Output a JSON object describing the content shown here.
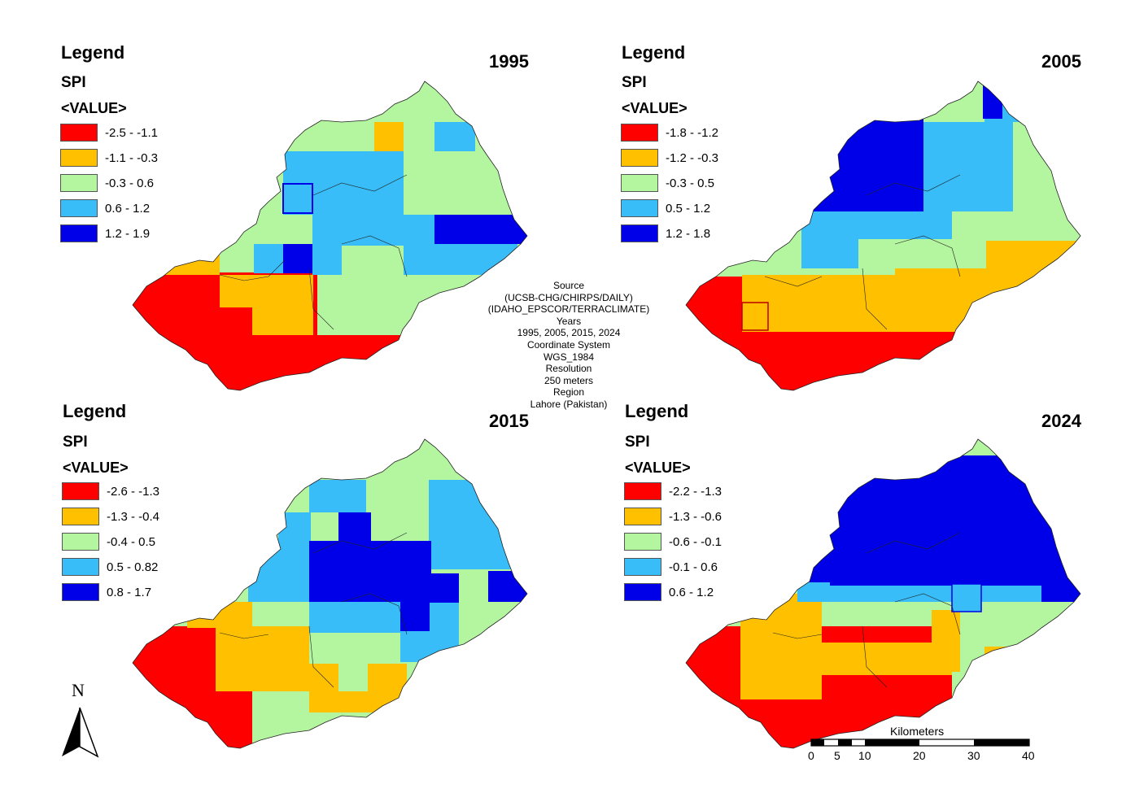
{
  "colors": {
    "red": "#ff0000",
    "orange": "#ffc000",
    "lightgreen": "#b4f5a0",
    "lightblue": "#38bdf8",
    "darkblue": "#0000e8"
  },
  "panels": [
    {
      "year": "1995",
      "legend": {
        "title": "Legend",
        "field": "SPI",
        "value_label": "<VALUE>",
        "classes": [
          {
            "label": "-2.5 - -1.1",
            "color": "red"
          },
          {
            "label": "-1.1 - -0.3",
            "color": "orange"
          },
          {
            "label": "-0.3 - 0.6",
            "color": "lightgreen"
          },
          {
            "label": "0.6 - 1.2",
            "color": "lightblue"
          },
          {
            "label": "1.2 - 1.9",
            "color": "darkblue"
          }
        ]
      }
    },
    {
      "year": "2005",
      "legend": {
        "title": "Legend",
        "field": "SPI",
        "value_label": "<VALUE>",
        "classes": [
          {
            "label": "-1.8 - -1.2",
            "color": "red"
          },
          {
            "label": "-1.2 - -0.3",
            "color": "orange"
          },
          {
            "label": "-0.3 - 0.5",
            "color": "lightgreen"
          },
          {
            "label": "0.5 - 1.2",
            "color": "lightblue"
          },
          {
            "label": "1.2 - 1.8",
            "color": "darkblue"
          }
        ]
      }
    },
    {
      "year": "2015",
      "legend": {
        "title": "Legend",
        "field": "SPI",
        "value_label": "<VALUE>",
        "classes": [
          {
            "label": "-2.6 - -1.3",
            "color": "red"
          },
          {
            "label": "-1.3 - -0.4",
            "color": "orange"
          },
          {
            "label": "-0.4 - 0.5",
            "color": "lightgreen"
          },
          {
            "label": "0.5 - 0.82",
            "color": "lightblue"
          },
          {
            "label": "0.8 - 1.7",
            "color": "darkblue"
          }
        ]
      }
    },
    {
      "year": "2024",
      "legend": {
        "title": "Legend",
        "field": "SPI",
        "value_label": "<VALUE>",
        "classes": [
          {
            "label": "-2.2 - -1.3",
            "color": "red"
          },
          {
            "label": "-1.3 - -0.6",
            "color": "orange"
          },
          {
            "label": "-0.6 - -0.1",
            "color": "lightgreen"
          },
          {
            "label": "-0.1 - 0.6",
            "color": "lightblue"
          },
          {
            "label": "0.6 - 1.2",
            "color": "darkblue"
          }
        ]
      }
    }
  ],
  "source_info": {
    "lines": [
      "Source",
      "(UCSB-CHG/CHIRPS/DAILY)",
      "(IDAHO_EPSCOR/TERRACLIMATE)",
      "Years",
      "1995, 2005, 2015, 2024",
      "Coordinate System",
      "WGS_1984",
      "Resolution",
      "250 meters",
      "Region",
      "Lahore (Pakistan)"
    ]
  },
  "north_arrow": {
    "label": "N"
  },
  "scale_bar": {
    "unit_label": "Kilometers",
    "ticks": [
      "0",
      "5",
      "10",
      "20",
      "30",
      "40"
    ]
  }
}
